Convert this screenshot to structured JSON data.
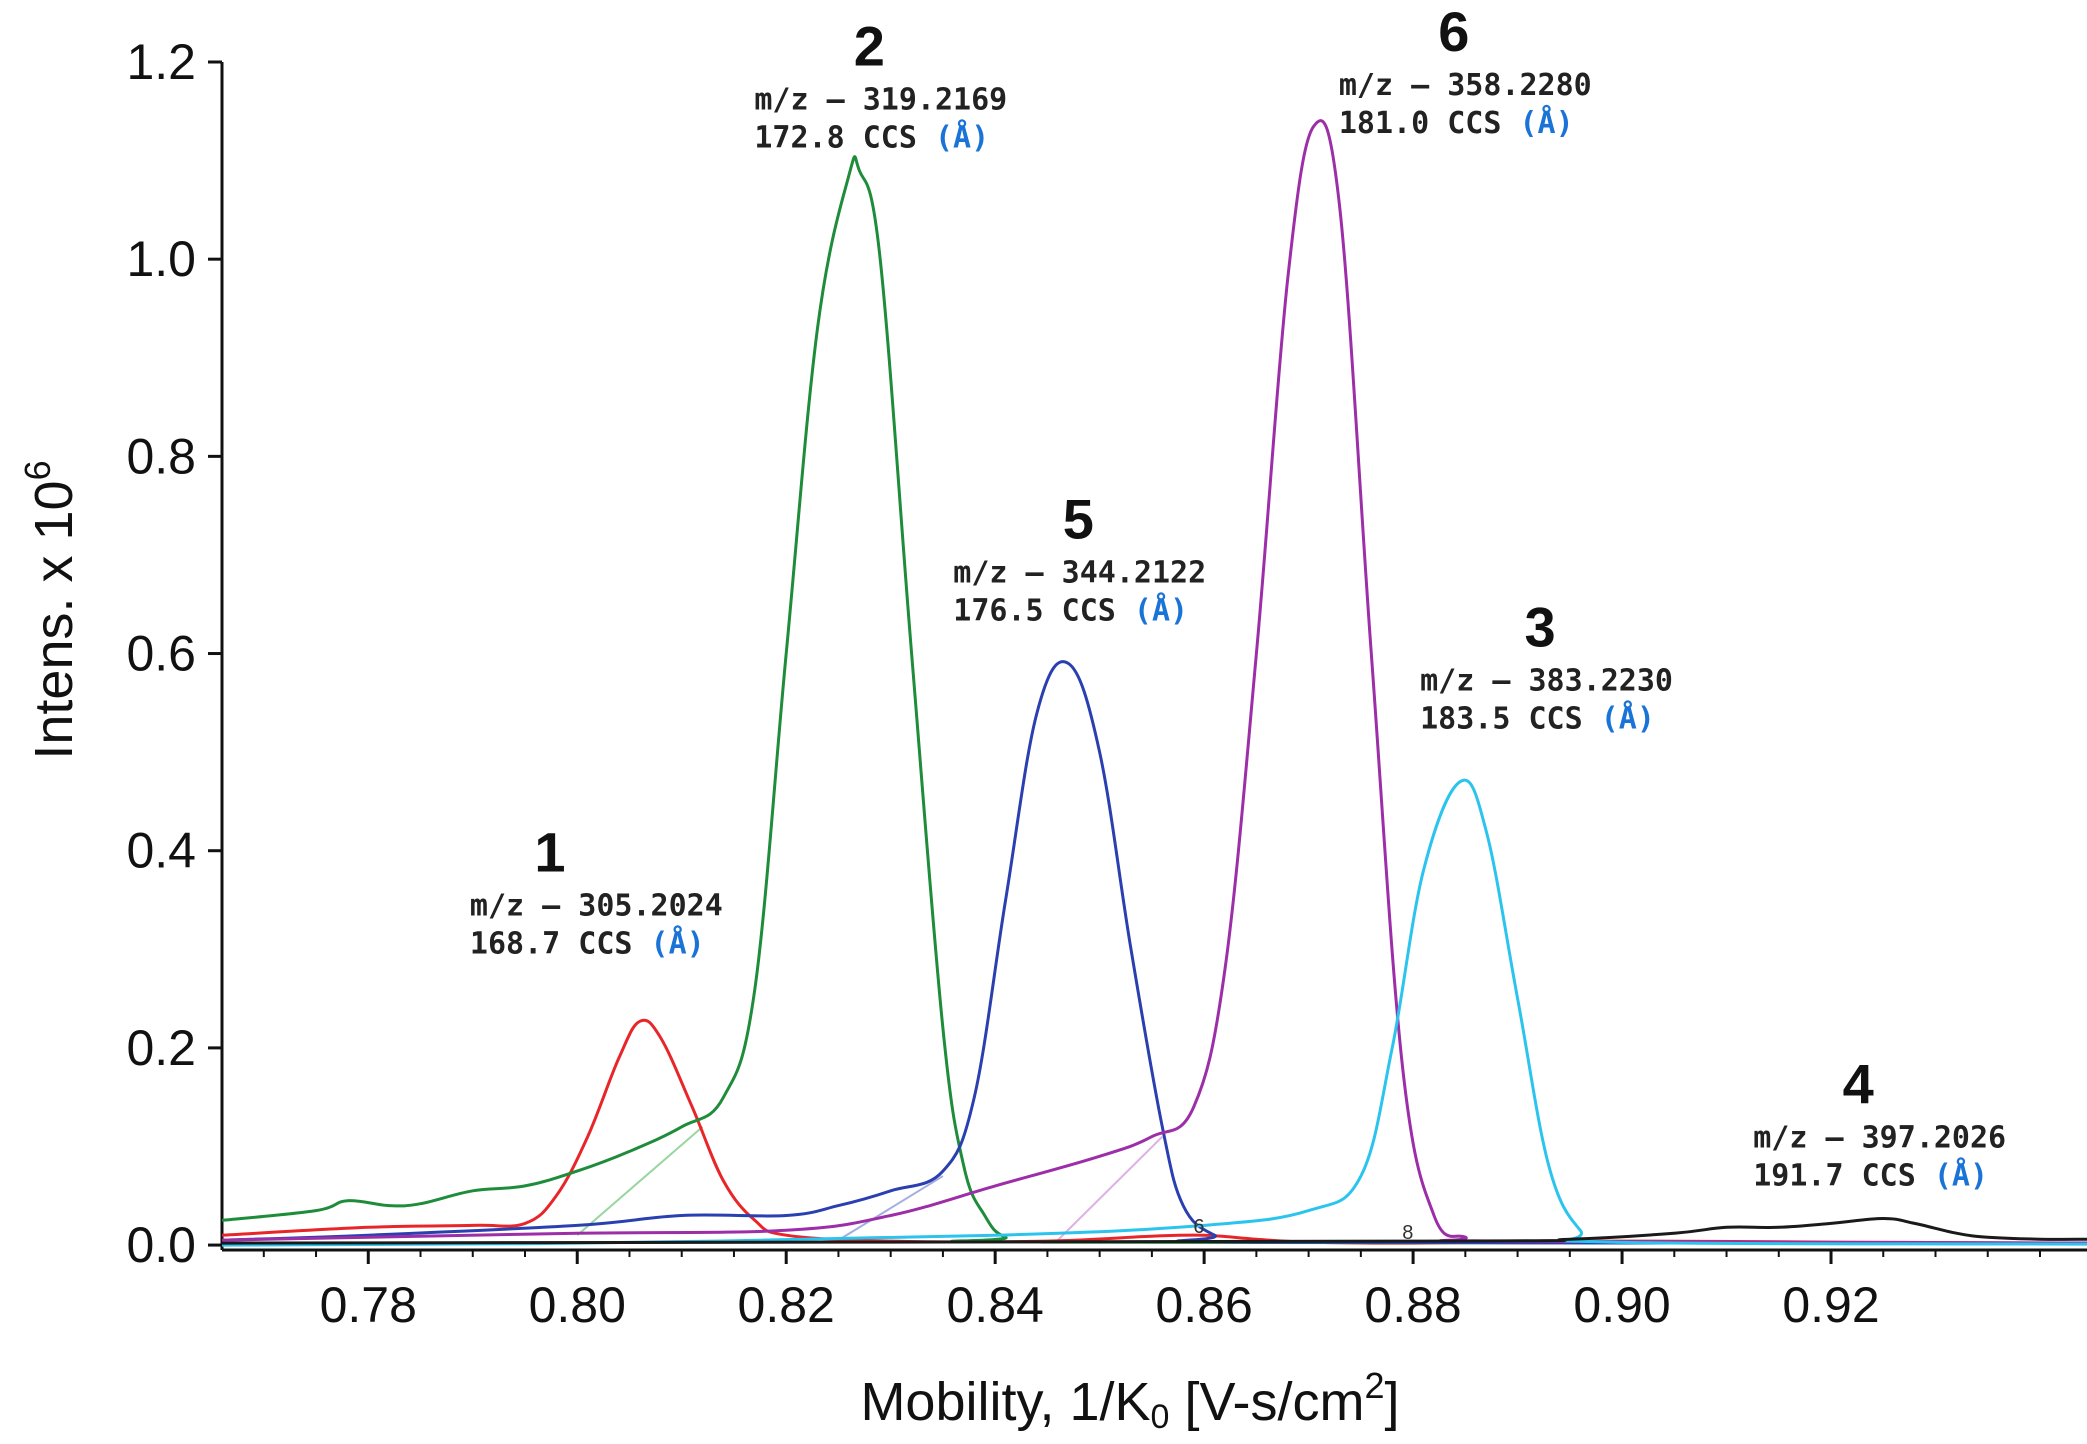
{
  "chart_data": {
    "type": "line",
    "xlabel_parts": {
      "main": "Mobility, 1/K",
      "sub": "0",
      "unit": "[V-s/cm",
      "sup": "2",
      "close": "]"
    },
    "ylabel_parts": {
      "main": "Intens. x 10",
      "sup": "6"
    },
    "xlim": [
      0.766,
      0.9445
    ],
    "ylim": [
      -0.005,
      1.2
    ],
    "x_ticks": [
      0.78,
      0.8,
      0.82,
      0.84,
      0.86,
      0.88,
      0.9,
      0.92
    ],
    "x_tick_labels": [
      "0.78",
      "0.80",
      "0.82",
      "0.84",
      "0.86",
      "0.88",
      "0.90",
      "0.92"
    ],
    "y_ticks": [
      0.0,
      0.2,
      0.4,
      0.6,
      0.8,
      1.0,
      1.2
    ],
    "y_tick_labels": [
      "0.0",
      "0.2",
      "0.4",
      "0.6",
      "0.8",
      "1.0",
      "1.2"
    ],
    "series": [
      {
        "name": "1",
        "color": "#e8262a",
        "mz_label": "m/z – 305.2024",
        "ccs_value": "168.7 CCS",
        "ccs_unit": "(Å)",
        "x": [
          0.766,
          0.78,
          0.79,
          0.795,
          0.798,
          0.801,
          0.804,
          0.806,
          0.808,
          0.811,
          0.814,
          0.817,
          0.82,
          0.83,
          0.845,
          0.855,
          0.86,
          0.865,
          0.87,
          0.88,
          0.9,
          0.92,
          0.9445
        ],
        "y": [
          0.01,
          0.018,
          0.02,
          0.022,
          0.05,
          0.11,
          0.19,
          0.227,
          0.21,
          0.14,
          0.065,
          0.025,
          0.01,
          0.004,
          0.004,
          0.009,
          0.01,
          0.006,
          0.003,
          0.002,
          0.004,
          0.003,
          0.002
        ]
      },
      {
        "name": "2",
        "color": "#1e8c3a",
        "mz_label": "m/z – 319.2169",
        "ccs_value": "172.8 CCS",
        "ccs_unit": "(Å)",
        "x": [
          0.766,
          0.775,
          0.778,
          0.782,
          0.785,
          0.79,
          0.795,
          0.8,
          0.805,
          0.81,
          0.814,
          0.817,
          0.82,
          0.823,
          0.826,
          0.827,
          0.829,
          0.832,
          0.835,
          0.837,
          0.839,
          0.841,
          0.845,
          0.9445
        ],
        "y": [
          0.025,
          0.035,
          0.045,
          0.04,
          0.042,
          0.055,
          0.06,
          0.075,
          0.095,
          0.12,
          0.15,
          0.26,
          0.6,
          0.93,
          1.085,
          1.09,
          1.0,
          0.6,
          0.22,
          0.08,
          0.03,
          0.008,
          0.003,
          0.002
        ]
      },
      {
        "name": "5",
        "color": "#2a3fb0",
        "mz_label": "m/z – 344.2122",
        "ccs_value": "176.5 CCS",
        "ccs_unit": "(Å)",
        "x": [
          0.766,
          0.78,
          0.8,
          0.81,
          0.82,
          0.825,
          0.83,
          0.835,
          0.838,
          0.841,
          0.844,
          0.847,
          0.85,
          0.853,
          0.856,
          0.858,
          0.861,
          0.865,
          0.9445
        ],
        "y": [
          0.005,
          0.01,
          0.02,
          0.03,
          0.03,
          0.04,
          0.055,
          0.075,
          0.15,
          0.35,
          0.54,
          0.59,
          0.5,
          0.3,
          0.12,
          0.04,
          0.01,
          0.003,
          0.002
        ]
      },
      {
        "name": "6",
        "color": "#9c2ea8",
        "mz_label": "m/z – 358.2280",
        "ccs_value": "181.0 CCS",
        "ccs_unit": "(Å)",
        "x": [
          0.766,
          0.78,
          0.8,
          0.82,
          0.83,
          0.84,
          0.85,
          0.855,
          0.859,
          0.862,
          0.865,
          0.868,
          0.8705,
          0.873,
          0.876,
          0.879,
          0.882,
          0.885,
          0.888,
          0.9445
        ],
        "y": [
          0.005,
          0.008,
          0.012,
          0.015,
          0.03,
          0.06,
          0.09,
          0.11,
          0.14,
          0.28,
          0.6,
          0.98,
          1.135,
          1.05,
          0.6,
          0.18,
          0.03,
          0.008,
          0.004,
          0.002
        ]
      },
      {
        "name": "3",
        "color": "#2bc4ee",
        "mz_label": "m/z – 383.2230",
        "ccs_value": "183.5 CCS",
        "ccs_unit": "(Å)",
        "x": [
          0.766,
          0.8,
          0.84,
          0.86,
          0.87,
          0.875,
          0.878,
          0.881,
          0.8845,
          0.887,
          0.89,
          0.893,
          0.896,
          0.899,
          0.9445
        ],
        "y": [
          0.0,
          0.002,
          0.01,
          0.02,
          0.035,
          0.07,
          0.2,
          0.38,
          0.47,
          0.42,
          0.25,
          0.08,
          0.015,
          0.003,
          0.001
        ]
      },
      {
        "name": "4",
        "color": "#1a1a1a",
        "mz_label": "m/z – 397.2026",
        "ccs_value": "191.7 CCS",
        "ccs_unit": "(Å)",
        "x": [
          0.766,
          0.88,
          0.895,
          0.905,
          0.91,
          0.915,
          0.92,
          0.925,
          0.928,
          0.932,
          0.935,
          0.94,
          0.9445
        ],
        "y": [
          0.002,
          0.004,
          0.006,
          0.012,
          0.018,
          0.018,
          0.022,
          0.027,
          0.022,
          0.012,
          0.008,
          0.006,
          0.006
        ]
      }
    ],
    "baseline_segments": [
      {
        "color": "#9ad6a0",
        "x1": 0.8,
        "y1": 0.01,
        "x2": 0.812,
        "y2": 0.12
      },
      {
        "color": "#a3aee0",
        "x1": 0.825,
        "y1": 0.005,
        "x2": 0.835,
        "y2": 0.07
      },
      {
        "color": "#ddb2e3",
        "x1": 0.846,
        "y1": 0.005,
        "x2": 0.856,
        "y2": 0.11
      }
    ],
    "annotations": [
      {
        "series": "1",
        "number": "1",
        "mz": "m/z – 305.2024",
        "ccs": "168.7 CCS",
        "unit": "(Å)"
      },
      {
        "series": "2",
        "number": "2",
        "mz": "m/z – 319.2169",
        "ccs": "172.8 CCS",
        "unit": "(Å)"
      },
      {
        "series": "5",
        "number": "5",
        "mz": "m/z – 344.2122",
        "ccs": "176.5 CCS",
        "unit": "(Å)"
      },
      {
        "series": "6",
        "number": "6",
        "mz": "m/z – 358.2280",
        "ccs": "181.0 CCS",
        "unit": "(Å)"
      },
      {
        "series": "3",
        "number": "3",
        "mz": "m/z – 383.2230",
        "ccs": "183.5 CCS",
        "unit": "(Å)"
      },
      {
        "series": "4",
        "number": "4",
        "mz": "m/z – 397.2026",
        "ccs": "191.7 CCS",
        "unit": "(Å)"
      }
    ],
    "small_markers": [
      {
        "text": "6",
        "x": 0.8595,
        "y": 0.012
      },
      {
        "text": "8",
        "x": 0.8795,
        "y": 0.006
      }
    ]
  }
}
